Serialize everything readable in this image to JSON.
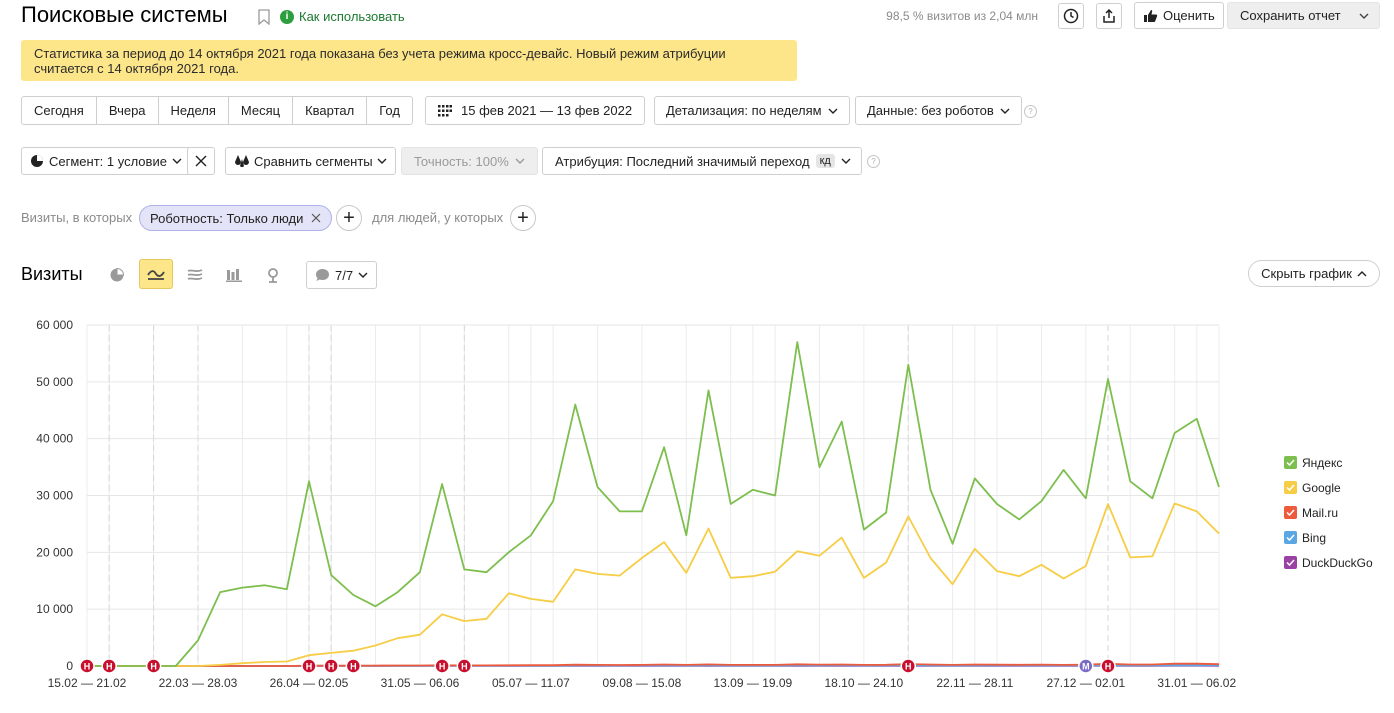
{
  "header": {
    "title": "Поисковые системы",
    "howto_label": "Как использовать",
    "visits_share": "98,5 % визитов из 2,04 млн",
    "rate_label": "Оценить",
    "save_label": "Сохранить отчет"
  },
  "notice": {
    "text": "Статистика за период до 14 октября 2021 года показана без учета режима кросс-девайс. Новый режим атрибуции считается с 14 октября 2021 года."
  },
  "toolbar": {
    "periods": [
      "Сегодня",
      "Вчера",
      "Неделя",
      "Месяц",
      "Квартал",
      "Год"
    ],
    "date_range": "15 фев 2021 — 13 фев 2022",
    "detail_label": "Детализация: по неделям",
    "data_label": "Данные: без роботов",
    "segment_label": "Сегмент: 1 условие",
    "compare_label": "Сравнить сегменты",
    "accuracy_label": "Точность: 100%",
    "attribution_label": "Атрибуция: Последний значимый переход",
    "attribution_badge": "кд"
  },
  "filters": {
    "visits_label": "Визиты, в которых",
    "chip_label": "Роботность: Только люди",
    "people_label": "для людей, у которых"
  },
  "chart_section": {
    "title": "Визиты",
    "annotations_label": "7/7",
    "hide_chart_label": "Скрыть график"
  },
  "colors": {
    "yandex": "#7dbf4e",
    "google": "#f6cd45",
    "mailru": "#ee5a3c",
    "bing": "#5aa7e4",
    "duckduckgo": "#9b41a6",
    "marker": "#c8102e",
    "marker_m": "#7a6cc4"
  },
  "chart_data": {
    "type": "line",
    "title": "",
    "xlabel": "",
    "ylabel": "",
    "ylim": [
      0,
      60000
    ],
    "yticks": [
      "0",
      "10 000",
      "20 000",
      "30 000",
      "40 000",
      "50 000",
      "60 000"
    ],
    "x_tick_labels": [
      "15.02 — 21.02",
      "22.03 — 28.03",
      "26.04 — 02.05",
      "31.05 — 06.06",
      "05.07 — 11.07",
      "09.08 — 15.08",
      "13.09 — 19.09",
      "18.10 — 24.10",
      "22.11 — 28.11",
      "27.12 — 02.01",
      "31.01 — 06.02"
    ],
    "grid": true,
    "legend": "right",
    "series": [
      {
        "name": "Яндекс",
        "color_key": "yandex",
        "values": [
          0,
          0,
          0,
          0,
          0,
          4500,
          13000,
          13800,
          14200,
          13500,
          32500,
          16000,
          12500,
          10500,
          13000,
          16500,
          32000,
          17000,
          16500,
          20000,
          23000,
          29000,
          46000,
          31500,
          27200,
          27200,
          38500,
          23000,
          48500,
          28500,
          31000,
          30000,
          57000,
          35000,
          43000,
          24000,
          27000,
          53000,
          31000,
          21500,
          33000,
          28500,
          25800,
          29000,
          34500,
          29500,
          50500,
          32500,
          29500,
          41000,
          43500,
          31500
        ]
      },
      {
        "name": "Google",
        "color_key": "google",
        "values": [
          0,
          0,
          0,
          0,
          0,
          0,
          200,
          500,
          700,
          800,
          1900,
          2300,
          2700,
          3600,
          4900,
          5500,
          9100,
          7900,
          8300,
          12800,
          11800,
          11300,
          17000,
          16200,
          15900,
          19000,
          21800,
          16400,
          24200,
          15500,
          15800,
          16600,
          20200,
          19400,
          22600,
          15500,
          18200,
          26300,
          19000,
          14400,
          20600,
          16700,
          15800,
          17800,
          15400,
          17600,
          28500,
          19100,
          19300,
          28600,
          27200,
          23300
        ]
      },
      {
        "name": "Mail.ru",
        "color_key": "mailru",
        "values": [
          0,
          0,
          0,
          0,
          0,
          0,
          0,
          0,
          0,
          0,
          50,
          60,
          60,
          70,
          80,
          80,
          120,
          100,
          100,
          130,
          140,
          140,
          220,
          200,
          180,
          200,
          260,
          190,
          280,
          190,
          190,
          200,
          300,
          250,
          260,
          190,
          210,
          330,
          260,
          200,
          260,
          230,
          210,
          240,
          200,
          230,
          380,
          260,
          260,
          400,
          400,
          320
        ]
      },
      {
        "name": "Bing",
        "color_key": "bing",
        "values": [
          0,
          0,
          0,
          0,
          0,
          0,
          0,
          0,
          0,
          0,
          30,
          30,
          30,
          30,
          40,
          40,
          60,
          50,
          50,
          60,
          60,
          60,
          80,
          80,
          70,
          80,
          90,
          70,
          100,
          70,
          70,
          70,
          110,
          90,
          100,
          70,
          80,
          120,
          90,
          70,
          90,
          80,
          80,
          90,
          80,
          90,
          130,
          90,
          90,
          130,
          130,
          110
        ]
      },
      {
        "name": "DuckDuckGo",
        "color_key": "duckduckgo",
        "values": [
          0,
          0,
          0,
          0,
          0,
          0,
          0,
          0,
          0,
          0,
          10,
          10,
          10,
          10,
          10,
          10,
          20,
          20,
          20,
          20,
          20,
          20,
          30,
          30,
          30,
          30,
          30,
          30,
          40,
          30,
          30,
          30,
          40,
          30,
          40,
          30,
          30,
          40,
          30,
          30,
          30,
          30,
          30,
          30,
          30,
          30,
          50,
          30,
          30,
          50,
          50,
          40
        ]
      }
    ],
    "markers": [
      {
        "label": "Н",
        "week": 0
      },
      {
        "label": "Н",
        "week": 1
      },
      {
        "label": "Н",
        "week": 3
      },
      {
        "label": "Н",
        "week": 10
      },
      {
        "label": "Н",
        "week": 11
      },
      {
        "label": "Н",
        "week": 12
      },
      {
        "label": "Н",
        "week": 16
      },
      {
        "label": "Н",
        "week": 17
      },
      {
        "label": "Н",
        "week": 37
      },
      {
        "label": "М",
        "week": 45
      },
      {
        "label": "Н",
        "week": 46
      }
    ]
  }
}
